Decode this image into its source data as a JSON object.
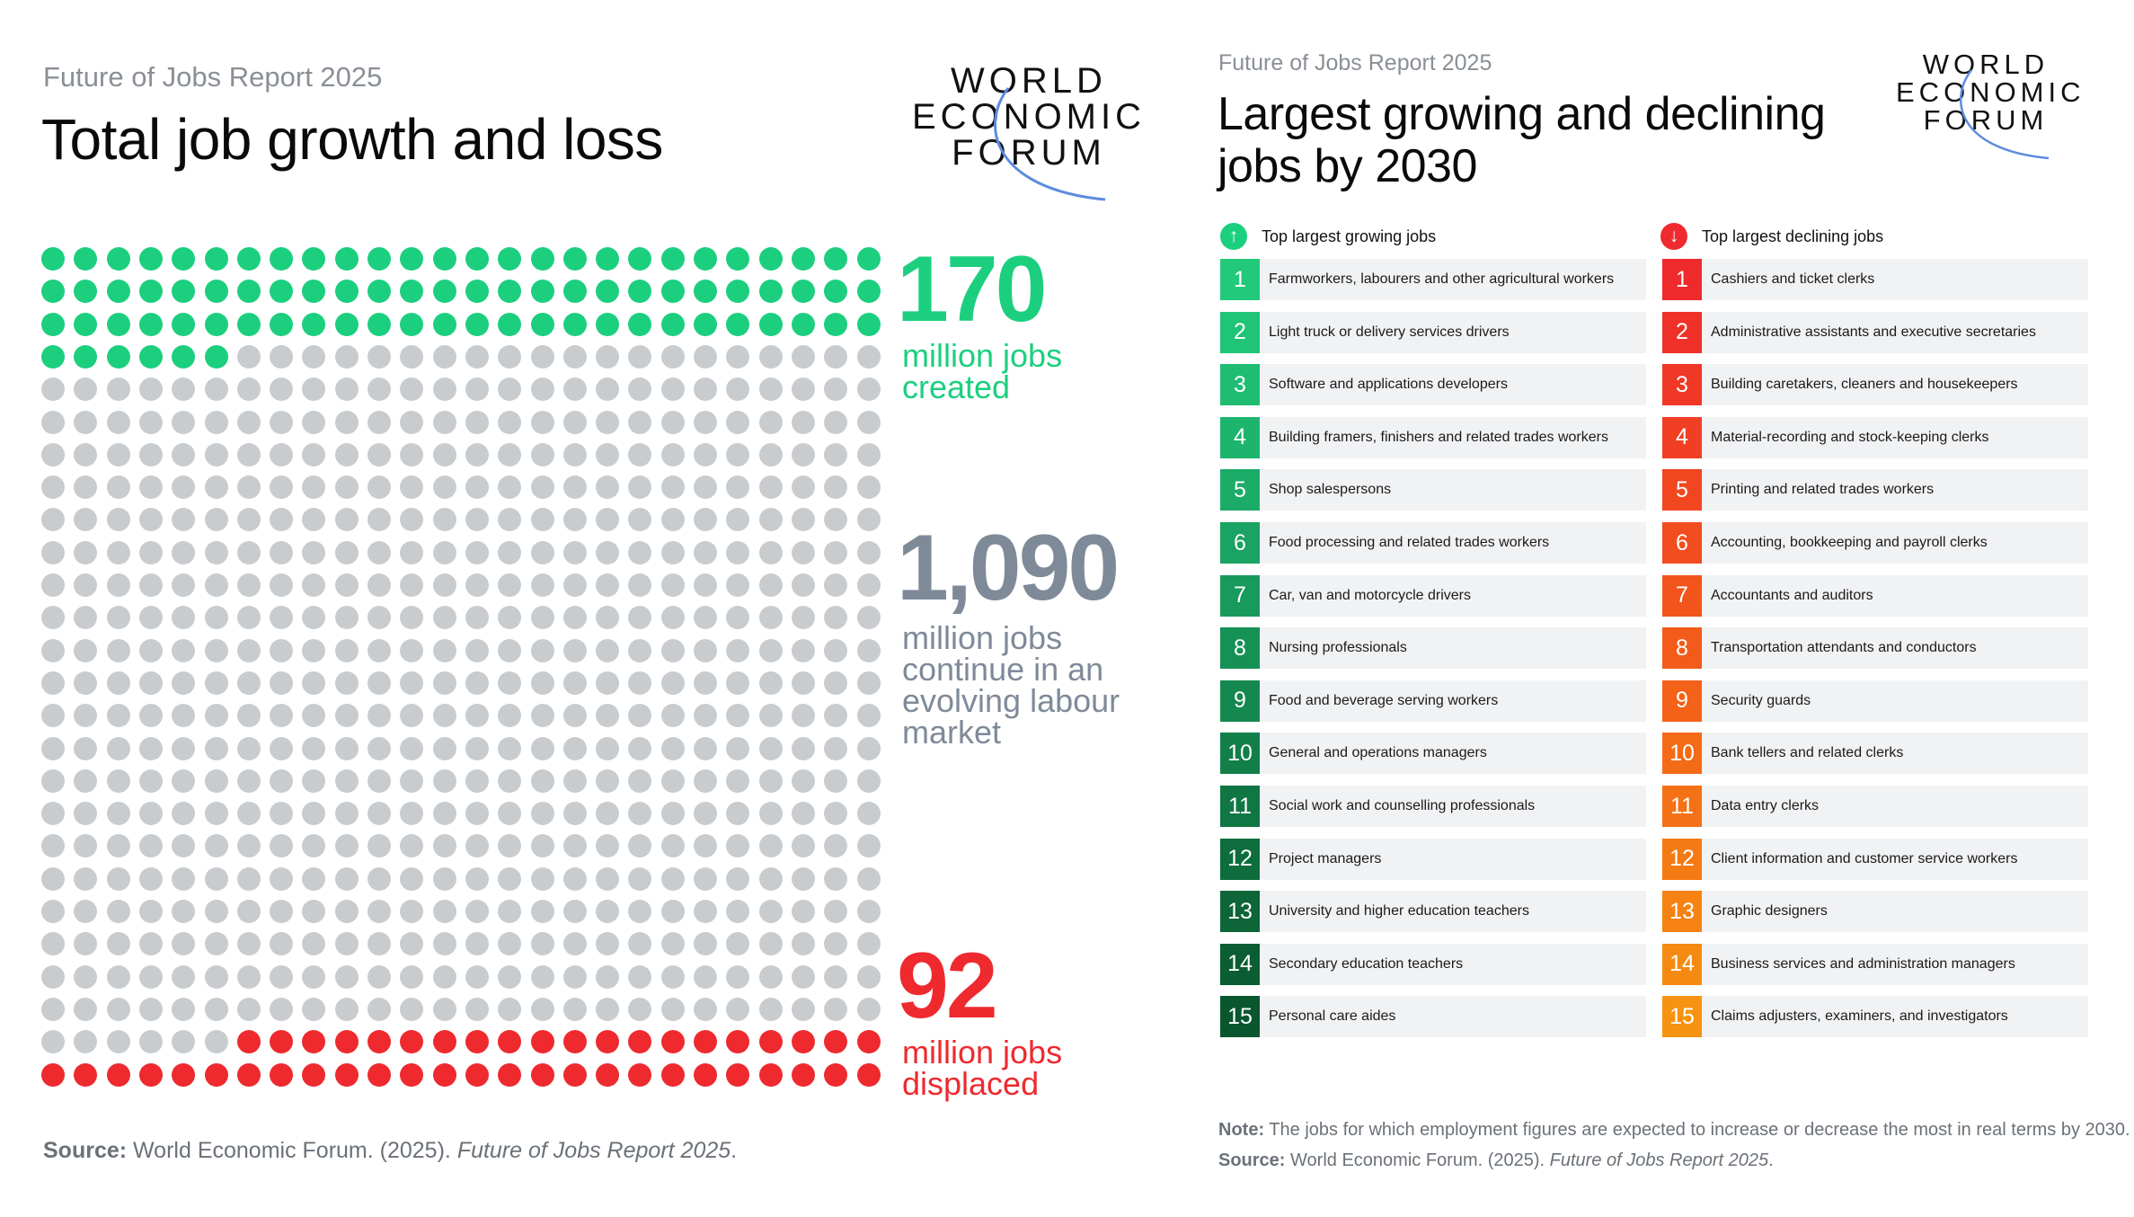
{
  "left": {
    "kicker": "Future of Jobs Report 2025",
    "title": "Total job growth and loss",
    "logo": [
      "WORLD",
      "ECONOMIC",
      "FORUM"
    ],
    "created": {
      "number": "170",
      "line1": "million jobs",
      "line2": "created"
    },
    "continuing": {
      "number": "1,090",
      "line1": "million jobs",
      "line2": "continue in an",
      "line3": "evolving labour",
      "line4": "market"
    },
    "displaced": {
      "number": "92",
      "line1": "million jobs",
      "line2": "displaced"
    },
    "source_label": "Source:",
    "source_text": " World Economic Forum. (2025). ",
    "source_italic": "Future of Jobs Report 2025",
    "source_end": "."
  },
  "right": {
    "kicker": "Future of Jobs Report 2025",
    "title_line1": "Largest growing and declining",
    "title_line2": "jobs by 2030",
    "logo": [
      "WORLD",
      "ECONOMIC",
      "FORUM"
    ],
    "growing_header": "Top largest growing jobs",
    "declining_header": "Top largest declining jobs",
    "growing": [
      "Farmworkers, labourers and other agricultural workers",
      "Light truck or delivery services drivers",
      "Software and applications developers",
      "Building framers, finishers and related trades workers",
      "Shop salespersons",
      "Food processing and related trades workers",
      "Car, van and motorcycle drivers",
      "Nursing professionals",
      "Food and beverage serving workers",
      "General and operations managers",
      "Social work and counselling professionals",
      "Project managers",
      "University and higher education teachers",
      "Secondary education teachers",
      "Personal care aides"
    ],
    "declining": [
      "Cashiers and ticket clerks",
      "Administrative assistants and executive secretaries",
      "Building caretakers, cleaners and housekeepers",
      "Material-recording and stock-keeping clerks",
      "Printing and related trades workers",
      "Accounting, bookkeeping and payroll clerks",
      "Accountants and auditors",
      "Transportation attendants and conductors",
      "Security guards",
      "Bank tellers and related clerks",
      "Data entry clerks",
      "Client information and customer service workers",
      "Graphic designers",
      "Business services and administration managers",
      "Claims adjusters, examiners, and investigators"
    ],
    "note_label": "Note:",
    "note_text": " The jobs for which employment figures are expected to increase or decrease the most in real terms by 2030.",
    "source_label": "Source:",
    "source_text": " World Economic Forum. (2025). ",
    "source_italic": "Future of Jobs Report 2025",
    "source_end": "."
  },
  "chart_data": {
    "type": "waffle",
    "grid": {
      "columns": 26,
      "rows": 26
    },
    "created_dots": 84,
    "displaced_dots": 46,
    "colors": {
      "created": "#1ccf7f",
      "neutral": "#c9cccf",
      "displaced": "#ee2a2f"
    }
  },
  "colors": {
    "green": "#1ccf7f",
    "gray_number": "#7f8a99",
    "red": "#ee2a2f",
    "logo_arc": "#5b8cdf",
    "growing_rank": [
      "#22c97a",
      "#1fc477",
      "#1ebd72",
      "#1db56e",
      "#1bac68",
      "#1aa362",
      "#189a5c",
      "#169155",
      "#14884f",
      "#127f49",
      "#107643",
      "#0e6d3d",
      "#0d6538",
      "#0b5d33",
      "#0a562f"
    ],
    "declining_rank": [
      "#ef2a2c",
      "#ef3129",
      "#f03826",
      "#f03f23",
      "#f14620",
      "#f14d1e",
      "#f2541c",
      "#f25b1a",
      "#f36218",
      "#f36a17",
      "#f47215",
      "#f47a14",
      "#f58213",
      "#f58a12",
      "#f69311"
    ]
  }
}
